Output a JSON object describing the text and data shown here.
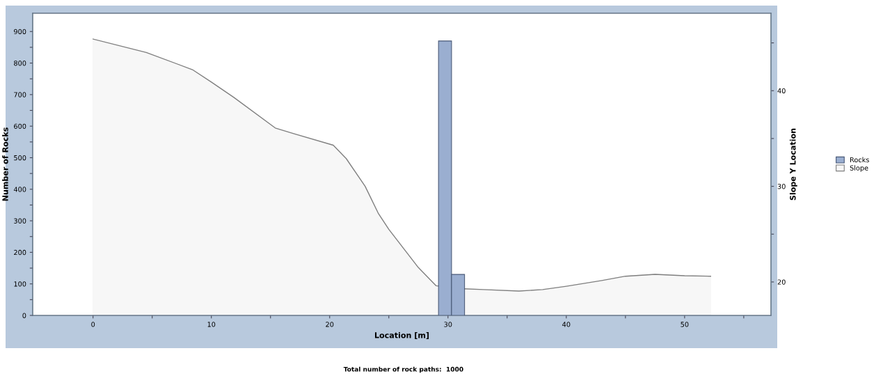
{
  "chart_data": {
    "type": "histogram",
    "xlabel": "Location [m]",
    "ylabel": "Number of Rocks",
    "y2label": "Slope Y Location",
    "xlim": [
      -5.1,
      57.3
    ],
    "ylim": [
      0,
      958
    ],
    "y2lim": [
      16.5,
      48.1
    ],
    "xticks": [
      0,
      {
        "value": 5,
        "label": null
      },
      10,
      {
        "value": 15,
        "label": null
      },
      20,
      {
        "value": 25,
        "label": null
      },
      30,
      {
        "value": 35,
        "label": null
      },
      40,
      {
        "value": 45,
        "label": null
      },
      50,
      {
        "value": 55,
        "label": null
      }
    ],
    "yticks": [
      0,
      {
        "value": 50,
        "label": null
      },
      100,
      {
        "value": 150,
        "label": null
      },
      200,
      {
        "value": 250,
        "label": null
      },
      300,
      {
        "value": 350,
        "label": null
      },
      400,
      {
        "value": 450,
        "label": null
      },
      500,
      {
        "value": 550,
        "label": null
      },
      600,
      {
        "value": 650,
        "label": null
      },
      700,
      {
        "value": 750,
        "label": null
      },
      800,
      {
        "value": 850,
        "label": null
      },
      900
    ],
    "y2ticks": [
      20,
      {
        "value": 25,
        "label": null
      },
      30,
      {
        "value": 35,
        "label": null
      },
      40,
      {
        "value": 45,
        "label": null
      }
    ],
    "legend": "right",
    "grid": false,
    "series": [
      {
        "name": "Rocks",
        "color": "#9aaed0",
        "bins": [
          29.2,
          30.3,
          31.4
        ],
        "values": [
          870,
          130
        ]
      },
      {
        "name": "Slope",
        "type": "area",
        "axis": "y2",
        "color": "#f7f7f7",
        "x": [
          0,
          4.5,
          8.4,
          10,
          11.9,
          15.4,
          17,
          20.3,
          21.4,
          23,
          24.1,
          25,
          27.5,
          29,
          31,
          33,
          36,
          38,
          40,
          43,
          45,
          47.5,
          50,
          52.2
        ],
        "values": [
          45.4,
          44.0,
          42.2,
          40.9,
          39.3,
          36.1,
          35.5,
          34.3,
          32.9,
          30.0,
          27.2,
          25.5,
          21.5,
          19.6,
          19.3,
          19.2,
          19.05,
          19.2,
          19.55,
          20.15,
          20.6,
          20.8,
          20.65,
          20.6
        ]
      }
    ],
    "annotations": [
      "Total number of rock paths:  1000"
    ]
  }
}
